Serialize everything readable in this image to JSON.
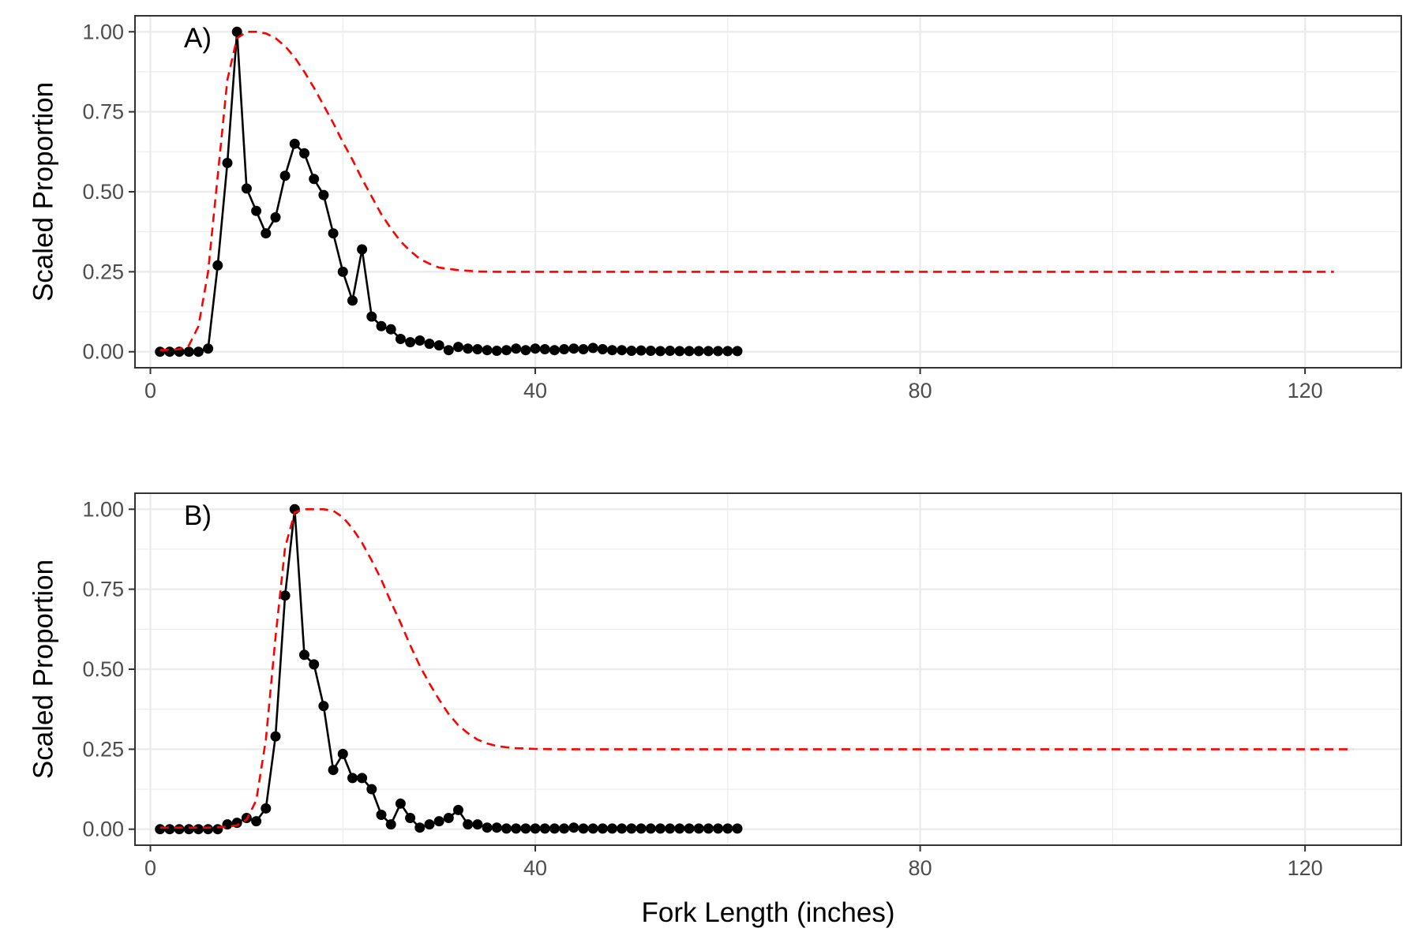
{
  "figure": {
    "xlabel": "Fork Length (inches)",
    "ylabel": "Scaled Proportion",
    "colors": {
      "observed": "#000000",
      "selectivity": "#ff0000",
      "grid": "#ebebeb",
      "panel_border": "#333333",
      "tick_text": "#4d4d4d"
    }
  },
  "chart_data": [
    {
      "type": "line",
      "panel_label": "A)",
      "xlabel": "",
      "ylabel": "Scaled Proportion",
      "xlim": [
        -1.6,
        130.0
      ],
      "ylim": [
        -0.05,
        1.05
      ],
      "x_ticks": [
        0,
        40,
        80,
        120
      ],
      "x_tick_labels": [
        "0",
        "40",
        "80",
        "120"
      ],
      "y_ticks": [
        0,
        0.25,
        0.5,
        0.75,
        1
      ],
      "y_tick_labels": [
        "0.00",
        "0.25",
        "0.50",
        "0.75",
        "1.00"
      ],
      "grid": true,
      "legend": "none",
      "series": [
        {
          "style": "solid-line-points",
          "color": "#000000",
          "x": [
            1,
            2,
            3,
            4,
            5,
            6,
            7,
            8,
            9,
            10,
            11,
            12,
            13,
            14,
            15,
            16,
            17,
            18,
            19,
            20,
            21,
            22,
            23,
            24,
            25,
            26,
            27,
            28,
            29,
            30,
            31,
            32,
            33,
            34,
            35,
            36,
            37,
            38,
            39,
            40,
            41,
            42,
            43,
            44,
            45,
            46,
            47,
            48,
            49,
            50,
            51,
            52,
            53,
            54,
            55,
            56,
            57,
            58,
            59,
            60,
            61
          ],
          "values": [
            0.0,
            0.0,
            0.0,
            0.0,
            0.0,
            0.01,
            0.27,
            0.59,
            1.0,
            0.51,
            0.44,
            0.37,
            0.42,
            0.55,
            0.65,
            0.62,
            0.54,
            0.49,
            0.37,
            0.25,
            0.16,
            0.32,
            0.11,
            0.08,
            0.07,
            0.04,
            0.03,
            0.035,
            0.025,
            0.02,
            0.005,
            0.015,
            0.01,
            0.008,
            0.005,
            0.003,
            0.005,
            0.01,
            0.005,
            0.01,
            0.008,
            0.005,
            0.008,
            0.01,
            0.008,
            0.012,
            0.008,
            0.005,
            0.005,
            0.003,
            0.004,
            0.003,
            0.002,
            0.003,
            0.002,
            0.002,
            0.002,
            0.002,
            0.002,
            0.002,
            0.002
          ]
        },
        {
          "style": "dashed-line",
          "color": "#ff0000",
          "x": [
            1,
            2,
            3,
            4,
            5,
            6,
            7,
            8,
            9,
            10,
            11,
            12,
            13,
            14,
            15,
            16,
            17,
            18,
            19,
            20,
            21,
            22,
            23,
            24,
            25,
            26,
            27,
            28,
            29,
            30,
            32,
            34,
            36,
            38,
            40,
            45,
            50,
            60,
            70,
            80,
            90,
            100,
            110,
            123
          ],
          "values": [
            0.005,
            0.006,
            0.008,
            0.02,
            0.08,
            0.25,
            0.55,
            0.85,
            0.98,
            1.0,
            1.0,
            0.995,
            0.98,
            0.955,
            0.92,
            0.875,
            0.825,
            0.77,
            0.715,
            0.655,
            0.6,
            0.54,
            0.485,
            0.43,
            0.385,
            0.345,
            0.315,
            0.29,
            0.275,
            0.263,
            0.255,
            0.251,
            0.25,
            0.25,
            0.25,
            0.25,
            0.25,
            0.25,
            0.25,
            0.25,
            0.25,
            0.25,
            0.25,
            0.25
          ]
        }
      ]
    },
    {
      "type": "line",
      "panel_label": "B)",
      "xlabel": "Fork Length (inches)",
      "ylabel": "Scaled Proportion",
      "xlim": [
        -1.6,
        130.0
      ],
      "ylim": [
        -0.05,
        1.05
      ],
      "x_ticks": [
        0,
        40,
        80,
        120
      ],
      "x_tick_labels": [
        "0",
        "40",
        "80",
        "120"
      ],
      "y_ticks": [
        0,
        0.25,
        0.5,
        0.75,
        1
      ],
      "y_tick_labels": [
        "0.00",
        "0.25",
        "0.50",
        "0.75",
        "1.00"
      ],
      "grid": true,
      "legend": "none",
      "series": [
        {
          "style": "solid-line-points",
          "color": "#000000",
          "x": [
            1,
            2,
            3,
            4,
            5,
            6,
            7,
            8,
            9,
            10,
            11,
            12,
            13,
            14,
            15,
            16,
            17,
            18,
            19,
            20,
            21,
            22,
            23,
            24,
            25,
            26,
            27,
            28,
            29,
            30,
            31,
            32,
            33,
            34,
            35,
            36,
            37,
            38,
            39,
            40,
            41,
            42,
            43,
            44,
            45,
            46,
            47,
            48,
            49,
            50,
            51,
            52,
            53,
            54,
            55,
            56,
            57,
            58,
            59,
            60,
            61
          ],
          "values": [
            0.0,
            0.0,
            0.0,
            0.0,
            0.0,
            0.0,
            0.0,
            0.015,
            0.02,
            0.035,
            0.025,
            0.065,
            0.29,
            0.73,
            1.0,
            0.545,
            0.515,
            0.385,
            0.185,
            0.235,
            0.16,
            0.16,
            0.125,
            0.045,
            0.015,
            0.08,
            0.035,
            0.005,
            0.015,
            0.025,
            0.035,
            0.06,
            0.015,
            0.015,
            0.005,
            0.005,
            0.002,
            0.002,
            0.002,
            0.002,
            0.002,
            0.002,
            0.002,
            0.005,
            0.002,
            0.002,
            0.002,
            0.002,
            0.002,
            0.002,
            0.002,
            0.002,
            0.002,
            0.002,
            0.002,
            0.002,
            0.002,
            0.002,
            0.002,
            0.002,
            0.002
          ]
        },
        {
          "style": "dashed-line",
          "color": "#ff0000",
          "x": [
            1,
            2,
            3,
            4,
            5,
            6,
            7,
            8,
            9,
            10,
            11,
            12,
            13,
            14,
            15,
            16,
            17,
            18,
            19,
            20,
            21,
            22,
            23,
            24,
            25,
            26,
            27,
            28,
            29,
            30,
            31,
            32,
            33,
            34,
            35,
            36,
            37,
            38,
            39,
            40,
            42,
            45,
            50,
            60,
            80,
            100,
            125
          ],
          "values": [
            0.005,
            0.005,
            0.005,
            0.005,
            0.005,
            0.005,
            0.006,
            0.008,
            0.012,
            0.03,
            0.09,
            0.28,
            0.6,
            0.88,
            0.99,
            1.0,
            1.0,
            1.0,
            0.995,
            0.975,
            0.94,
            0.895,
            0.84,
            0.78,
            0.71,
            0.645,
            0.575,
            0.51,
            0.455,
            0.405,
            0.36,
            0.325,
            0.3,
            0.28,
            0.268,
            0.26,
            0.256,
            0.253,
            0.252,
            0.251,
            0.25,
            0.25,
            0.25,
            0.25,
            0.25,
            0.25,
            0.25
          ]
        }
      ]
    }
  ]
}
